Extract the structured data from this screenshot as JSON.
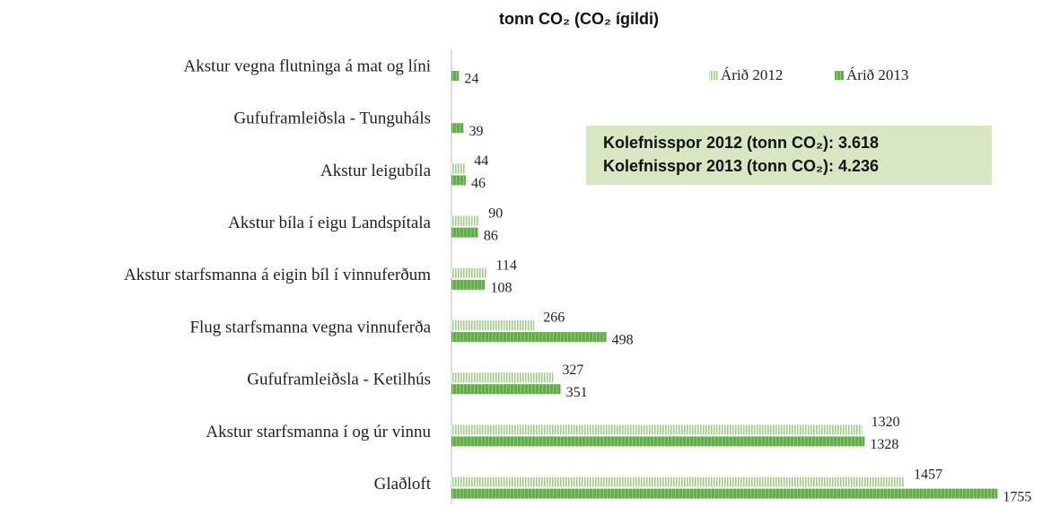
{
  "chart_data": {
    "type": "hbar",
    "title": "tonn CO₂ (CO₂  ígildi)",
    "categories": [
      "Akstur vegna flutninga á mat og líni",
      "Gufuframleiðsla - Tunguháls",
      "Akstur leigubíla",
      "Akstur bíla í eigu Landspítala",
      "Akstur starfsmanna á eigin bíl í vinnuferðum",
      "Flug starfsmanna vegna vinnuferða",
      "Gufuframleiðsla - Ketilhús",
      "Akstur starfsmanna í og úr vinnu",
      "Glaðloft"
    ],
    "series": [
      {
        "name": "Árið 2012",
        "color": "#9fcf84",
        "values": [
          null,
          null,
          44,
          90,
          114,
          266,
          327,
          1320,
          1457
        ]
      },
      {
        "name": "Árið 2013",
        "color": "#62ad4a",
        "values": [
          24,
          39,
          46,
          86,
          108,
          498,
          351,
          1328,
          1755
        ]
      }
    ],
    "xlim": [
      0,
      1800
    ],
    "annotations": [
      "Kolefnisspor 2012 (tonn CO₂):  3.618",
      "Kolefnisspor 2013 (tonn CO₂):  4.236"
    ]
  }
}
